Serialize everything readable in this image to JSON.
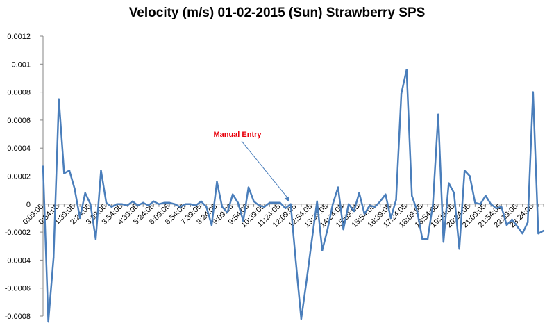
{
  "chart_data": {
    "type": "line",
    "title": "Velocity (m/s) 01-02-2015 (Sun) Strawberry SPS",
    "xlabel": "",
    "ylabel": "",
    "ylim": [
      -0.0008,
      0.0012
    ],
    "y_ticks": [
      0.0012,
      0.001,
      0.0008,
      0.0006,
      0.0004,
      0.0002,
      0,
      -0.0002,
      -0.0004,
      -0.0006,
      -0.0008
    ],
    "y_tick_labels": [
      "0.0012",
      "0.001",
      "0.0008",
      "0.0006",
      "0.0004",
      "0.0002",
      "0",
      "-0.0002",
      "-0.0004",
      "-0.0006",
      "-0.0008"
    ],
    "x_tick_labels": [
      "0:09:05",
      "0:54:05",
      "1:39:05",
      "2:24:05",
      "3:09:05",
      "3:54:05",
      "4:39:05",
      "5:24:05",
      "6:09:05",
      "6:54:05",
      "7:39:05",
      "8:24:05",
      "9:09:05",
      "9:54:05",
      "10:39:05",
      "11:24:05",
      "12:09:05",
      "12:54:05",
      "13:39:05",
      "14:24:05",
      "15:09:05",
      "15:54:05",
      "16:39:05",
      "17:24:05",
      "18:09:05",
      "18:54:05",
      "19:39:05",
      "20:24:05",
      "21:09:05",
      "21:54:05",
      "22:39:05",
      "23:24:05"
    ],
    "series": [
      {
        "color": "#4a7ebb",
        "values": [
          0.00027,
          -0.00084,
          -0.00038,
          0.00075,
          0.00022,
          0.00024,
          0.00011,
          -0.0001,
          8e-05,
          0.0,
          -0.00025,
          0.00024,
          1e-05,
          -2e-05,
          0.0,
          0.0,
          -1e-05,
          2e-05,
          -1e-05,
          1e-05,
          -1e-05,
          2e-05,
          0.0,
          1e-05,
          1e-05,
          0.0,
          -2e-05,
          0.0,
          0.0,
          -1e-05,
          2e-05,
          -2e-05,
          -0.00015,
          0.00016,
          -2e-05,
          -6e-05,
          7e-05,
          1e-05,
          -0.00012,
          0.00012,
          2e-05,
          -1e-05,
          -2e-05,
          1e-05,
          1e-05,
          1e-05,
          -3e-05,
          0.0,
          -0.00042,
          -0.00082,
          -0.00055,
          -0.00026,
          2e-05,
          -0.00033,
          -0.00018,
          0.0,
          0.00012,
          -0.00018,
          0.0,
          -5e-05,
          8e-05,
          -7e-05,
          -1e-05,
          -2e-05,
          2e-05,
          7e-05,
          -0.0001,
          3e-05,
          0.00079,
          0.00096,
          6e-05,
          -5e-05,
          -0.00025,
          -0.00025,
          0.0,
          0.00064,
          -0.00027,
          0.00015,
          8e-05,
          -0.00032,
          0.00024,
          0.0002,
          1e-05,
          0.0,
          6e-05,
          0.0,
          -3e-05,
          -2e-05,
          -0.00015,
          -0.00011,
          -0.00016,
          -0.00021,
          -0.00013,
          0.0008,
          -0.00021,
          -0.00019
        ]
      }
    ],
    "annotations": [
      {
        "text": "Manual Entry",
        "target_index": 47
      }
    ],
    "grid": false,
    "legend": "none"
  }
}
